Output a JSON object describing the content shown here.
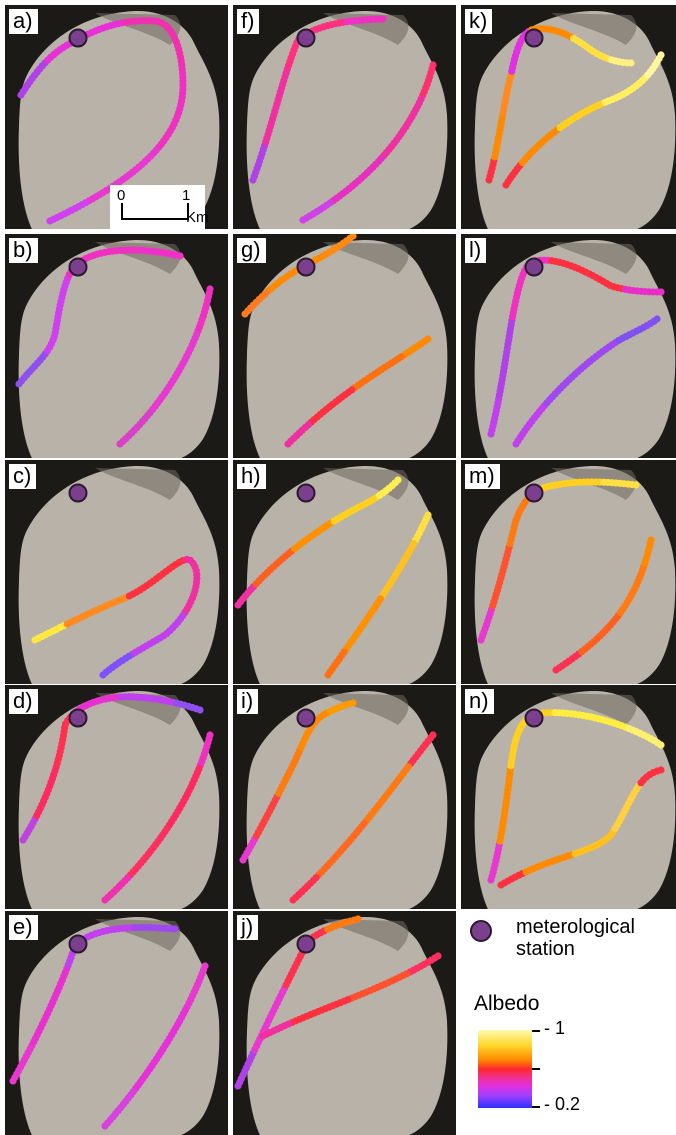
{
  "panels": [
    {
      "label": "a)",
      "col": 0,
      "row": 0,
      "station": true
    },
    {
      "label": "b)",
      "col": 0,
      "row": 1,
      "station": true
    },
    {
      "label": "c)",
      "col": 0,
      "row": 2,
      "station": true
    },
    {
      "label": "d)",
      "col": 0,
      "row": 3,
      "station": true
    },
    {
      "label": "e)",
      "col": 0,
      "row": 4,
      "station": true
    },
    {
      "label": "f)",
      "col": 1,
      "row": 0,
      "station": true
    },
    {
      "label": "g)",
      "col": 1,
      "row": 1,
      "station": true
    },
    {
      "label": "h)",
      "col": 1,
      "row": 2,
      "station": true
    },
    {
      "label": "i)",
      "col": 1,
      "row": 3,
      "station": true
    },
    {
      "label": "j)",
      "col": 1,
      "row": 4,
      "station": true
    },
    {
      "label": "k)",
      "col": 2,
      "row": 0,
      "station": true
    },
    {
      "label": "l)",
      "col": 2,
      "row": 1,
      "station": true
    },
    {
      "label": "m)",
      "col": 2,
      "row": 2,
      "station": true
    },
    {
      "label": "n)",
      "col": 2,
      "row": 3,
      "station": true
    }
  ],
  "scale_bar": {
    "start_label": "0",
    "end_label": "1",
    "unit_label": "Km"
  },
  "legend": {
    "station_label_line1": "meterological",
    "station_label_line2": "station",
    "albedo_title": "Albedo",
    "max_label": "- 1",
    "min_label": "- 0.2"
  },
  "colors": {
    "station_fill": "#7b3f8e",
    "station_stroke": "#2a1a30",
    "terrain_dark": "#1c1a17",
    "glacier_light": "#b9b2a8"
  }
}
